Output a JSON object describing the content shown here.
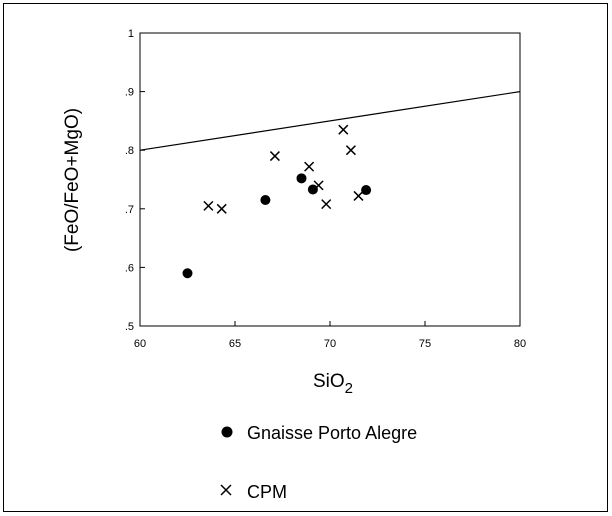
{
  "chart_data": {
    "type": "scatter",
    "xlabel_main": "SiO",
    "xlabel_sub": "2",
    "ylabel": "(FeO/FeO+MgO)",
    "xlim": [
      60,
      80
    ],
    "ylim": [
      0.5,
      1.0
    ],
    "xticks": [
      "60",
      "65",
      "70",
      "75",
      "80"
    ],
    "yticks": [
      ".5",
      ".6",
      ".7",
      ".8",
      ".9",
      "1"
    ],
    "line": {
      "x": [
        60,
        80
      ],
      "y": [
        0.8,
        0.9
      ]
    },
    "series": [
      {
        "name": "Gnaisse Porto Alegre",
        "marker": "filled-circle",
        "color": "#000000",
        "x": [
          62.5,
          66.6,
          68.5,
          69.1,
          71.9
        ],
        "y": [
          0.59,
          0.715,
          0.752,
          0.733,
          0.732
        ]
      },
      {
        "name": "CPM",
        "marker": "x",
        "color": "#000000",
        "x": [
          63.6,
          64.3,
          67.1,
          68.9,
          69.4,
          69.8,
          70.7,
          71.1,
          71.5
        ],
        "y": [
          0.705,
          0.7,
          0.79,
          0.772,
          0.74,
          0.708,
          0.835,
          0.8,
          0.722
        ]
      }
    ]
  }
}
